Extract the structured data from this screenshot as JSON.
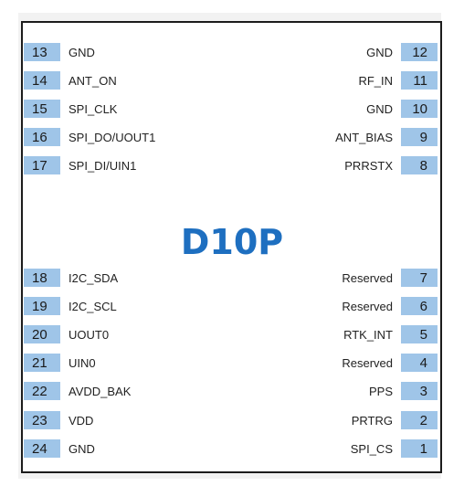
{
  "chip_name": "D10P",
  "left_pins": [
    {
      "num": "13",
      "label": "GND"
    },
    {
      "num": "14",
      "label": "ANT_ON"
    },
    {
      "num": "15",
      "label": "SPI_CLK"
    },
    {
      "num": "16",
      "label": "SPI_DO/UOUT1"
    },
    {
      "num": "17",
      "label": "SPI_DI/UIN1"
    },
    {
      "num": "18",
      "label": "I2C_SDA"
    },
    {
      "num": "19",
      "label": "I2C_SCL"
    },
    {
      "num": "20",
      "label": "UOUT0"
    },
    {
      "num": "21",
      "label": "UIN0"
    },
    {
      "num": "22",
      "label": "AVDD_BAK"
    },
    {
      "num": "23",
      "label": "VDD"
    },
    {
      "num": "24",
      "label": "GND"
    }
  ],
  "right_pins": [
    {
      "num": "12",
      "label": "GND"
    },
    {
      "num": "11",
      "label": "RF_IN"
    },
    {
      "num": "10",
      "label": "GND"
    },
    {
      "num": "9",
      "label": "ANT_BIAS"
    },
    {
      "num": "8",
      "label": "PRRSTX"
    },
    {
      "num": "7",
      "label": "Reserved"
    },
    {
      "num": "6",
      "label": "Reserved"
    },
    {
      "num": "5",
      "label": "RTK_INT"
    },
    {
      "num": "4",
      "label": "Reserved"
    },
    {
      "num": "3",
      "label": "PPS"
    },
    {
      "num": "2",
      "label": "PRTRG"
    },
    {
      "num": "1",
      "label": "SPI_CS"
    }
  ],
  "colors": {
    "pin_fill": "#9fc5e8",
    "title": "#1e6fc0",
    "border": "#1c1c1c"
  }
}
